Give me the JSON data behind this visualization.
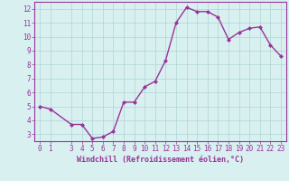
{
  "x": [
    0,
    1,
    3,
    4,
    5,
    6,
    7,
    8,
    9,
    10,
    11,
    12,
    13,
    14,
    15,
    16,
    17,
    18,
    19,
    20,
    21,
    22,
    23
  ],
  "y": [
    5.0,
    4.8,
    3.7,
    3.7,
    2.7,
    2.8,
    3.2,
    5.3,
    5.3,
    6.4,
    6.8,
    8.3,
    11.0,
    12.1,
    11.8,
    11.8,
    11.4,
    9.8,
    10.3,
    10.6,
    10.7,
    9.4,
    8.6
  ],
  "line_color": "#993399",
  "marker": "D",
  "marker_size": 2.0,
  "bg_color": "#d8f0f0",
  "grid_color": "#b0d4d4",
  "xlabel": "Windchill (Refroidissement éolien,°C)",
  "ylim": [
    2.5,
    12.5
  ],
  "xlim": [
    -0.5,
    23.5
  ],
  "yticks": [
    3,
    4,
    5,
    6,
    7,
    8,
    9,
    10,
    11,
    12
  ],
  "xticks": [
    0,
    1,
    3,
    4,
    5,
    6,
    7,
    8,
    9,
    10,
    11,
    12,
    13,
    14,
    15,
    16,
    17,
    18,
    19,
    20,
    21,
    22,
    23
  ],
  "line_width": 1.0,
  "tick_fontsize": 5.5,
  "label_fontsize": 6.0
}
